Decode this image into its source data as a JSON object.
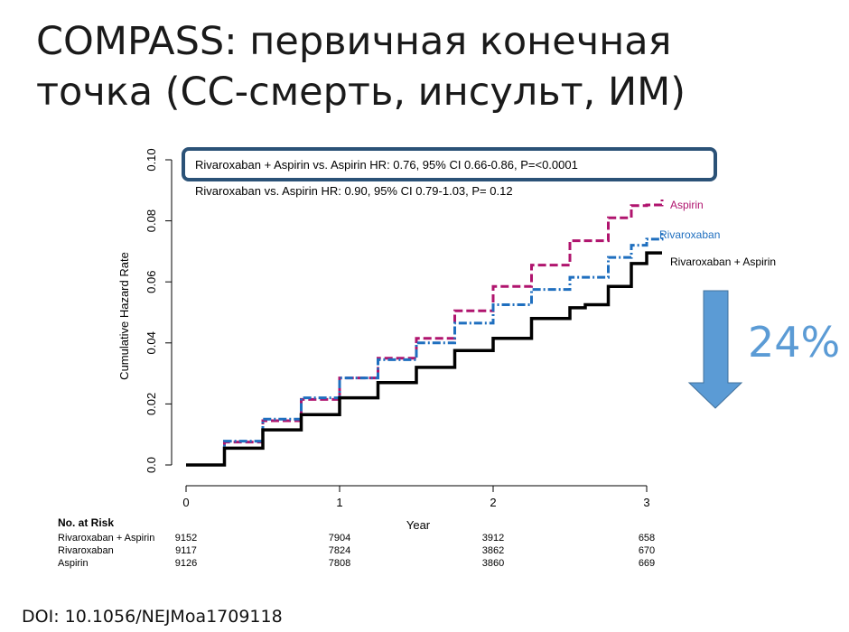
{
  "slide": {
    "title_line1": "COMPASS: первичная конечная",
    "title_line2": "точка (СС-смерть, инсульт, ИМ)",
    "reduction": "24%",
    "doi": "DOI: 10.1056/NEJMoa1709118"
  },
  "chart_data": {
    "type": "line",
    "xlabel": "Year",
    "ylabel": "Cumulative Hazard Rate",
    "xlim": [
      0,
      3.1
    ],
    "ylim": [
      0,
      0.1
    ],
    "xticks": [
      0,
      1,
      2,
      3
    ],
    "yticks": [
      0.0,
      0.02,
      0.04,
      0.06,
      0.08,
      0.1
    ],
    "ytick_labels": [
      "0.0",
      "0.02",
      "0.04",
      "0.06",
      "0.08",
      "0.10"
    ],
    "annotations": {
      "highlight": "Rivaroxaban + Aspirin vs. Aspirin      HR: 0.76, 95% CI 0.66-0.86,  P=<0.0001",
      "secondary": "Rivaroxaban vs. Aspirin        HR: 0.90, 95% CI 0.79-1.03,  P= 0.12"
    },
    "series": [
      {
        "name": "Aspirin",
        "color": "#b0146e",
        "style": "dashed",
        "x": [
          0,
          0.25,
          0.5,
          0.75,
          1.0,
          1.25,
          1.5,
          1.75,
          2.0,
          2.25,
          2.5,
          2.75,
          2.9,
          3.0,
          3.1
        ],
        "y": [
          0,
          0.0075,
          0.0145,
          0.0215,
          0.0285,
          0.035,
          0.0415,
          0.0505,
          0.0585,
          0.0655,
          0.0735,
          0.081,
          0.085,
          0.0852,
          0.087
        ]
      },
      {
        "name": "Rivaroxaban",
        "color": "#1f6fbf",
        "style": "dashdot",
        "x": [
          0,
          0.25,
          0.5,
          0.75,
          1.0,
          1.25,
          1.5,
          1.75,
          2.0,
          2.25,
          2.5,
          2.75,
          2.9,
          3.0,
          3.1
        ],
        "y": [
          0,
          0.0078,
          0.015,
          0.022,
          0.0285,
          0.0345,
          0.04,
          0.0465,
          0.0525,
          0.0575,
          0.0615,
          0.068,
          0.072,
          0.074,
          0.076
        ]
      },
      {
        "name": "Rivaroxaban + Aspirin",
        "color": "#000000",
        "style": "solid",
        "x": [
          0,
          0.25,
          0.5,
          0.75,
          1.0,
          1.25,
          1.5,
          1.75,
          2.0,
          2.25,
          2.5,
          2.6,
          2.75,
          2.9,
          3.0,
          3.1
        ],
        "y": [
          0,
          0.0055,
          0.0115,
          0.0165,
          0.022,
          0.027,
          0.032,
          0.0375,
          0.0415,
          0.048,
          0.0515,
          0.0525,
          0.0585,
          0.066,
          0.0695,
          0.0695
        ]
      }
    ],
    "at_risk": {
      "title": "No. at Risk",
      "rows": [
        {
          "label": "Rivaroxaban + Aspirin",
          "values": [
            "9152",
            "7904",
            "3912",
            "658"
          ]
        },
        {
          "label": "Rivaroxaban",
          "values": [
            "9117",
            "7824",
            "3862",
            "670"
          ]
        },
        {
          "label": "Aspirin",
          "values": [
            "9126",
            "7808",
            "3860",
            "669"
          ]
        }
      ]
    }
  }
}
